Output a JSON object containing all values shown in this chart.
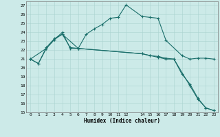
{
  "xlabel": "Humidex (Indice chaleur)",
  "bg_color": "#cceae8",
  "grid_color": "#aad4d0",
  "line_color": "#1a6e6a",
  "xlim": [
    -0.5,
    23.5
  ],
  "ylim": [
    15,
    27.5
  ],
  "yticks": [
    15,
    16,
    17,
    18,
    19,
    20,
    21,
    22,
    23,
    24,
    25,
    26,
    27
  ],
  "xticks": [
    0,
    1,
    2,
    3,
    4,
    5,
    6,
    7,
    8,
    9,
    10,
    11,
    12,
    14,
    15,
    16,
    17,
    18,
    19,
    20,
    21,
    22,
    23
  ],
  "line1_x": [
    0,
    1,
    2,
    3,
    4,
    6,
    7,
    8,
    9,
    10,
    11,
    12,
    14,
    15,
    16,
    17,
    19,
    20,
    21,
    22,
    23
  ],
  "line1_y": [
    21.0,
    20.5,
    22.2,
    23.2,
    23.8,
    22.2,
    23.8,
    24.4,
    24.9,
    25.6,
    25.7,
    27.1,
    25.8,
    25.7,
    25.6,
    23.1,
    21.4,
    21.0,
    21.1,
    21.1,
    21.0
  ],
  "line2_x": [
    0,
    1,
    2,
    3,
    4,
    5,
    6,
    14,
    15,
    16,
    17,
    18,
    20,
    21,
    22,
    23
  ],
  "line2_y": [
    21.0,
    20.5,
    22.3,
    23.3,
    23.8,
    22.3,
    22.2,
    21.6,
    21.4,
    21.3,
    21.1,
    21.0,
    18.0,
    16.5,
    15.5,
    15.2
  ],
  "line3_x": [
    0,
    2,
    3,
    4,
    5,
    6,
    14,
    15,
    16,
    17,
    18,
    19,
    20,
    21,
    22,
    23
  ],
  "line3_y": [
    21.0,
    22.2,
    23.2,
    24.0,
    22.2,
    22.2,
    21.6,
    21.4,
    21.2,
    21.0,
    21.0,
    19.3,
    18.2,
    16.6,
    15.5,
    15.2
  ]
}
